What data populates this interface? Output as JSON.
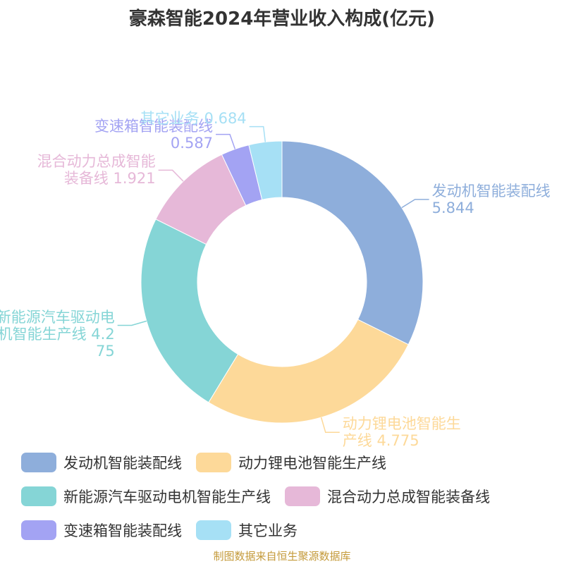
{
  "chart_data": {
    "type": "donut",
    "title": "豪森智能2024年营业收入构成(亿元)",
    "source": "制图数据来自恒生聚源数据库",
    "series": [
      {
        "name": "发动机智能装配线",
        "color": "#8eaedb",
        "value": 5.844
      },
      {
        "name": "动力锂电池智能生产线",
        "color": "#fdd999",
        "value": 4.775
      },
      {
        "name": "新能源汽车驱动电机智能生产线",
        "color": "#85d5d6",
        "value": 4.275
      },
      {
        "name": "混合动力总成智能装备线",
        "color": "#e6b8d8",
        "value": 1.921
      },
      {
        "name": "变速箱智能装配线",
        "color": "#a3a3f3",
        "value": 0.587
      },
      {
        "name": "其它业务",
        "color": "#a6e0f5",
        "value": 0.684
      }
    ]
  }
}
